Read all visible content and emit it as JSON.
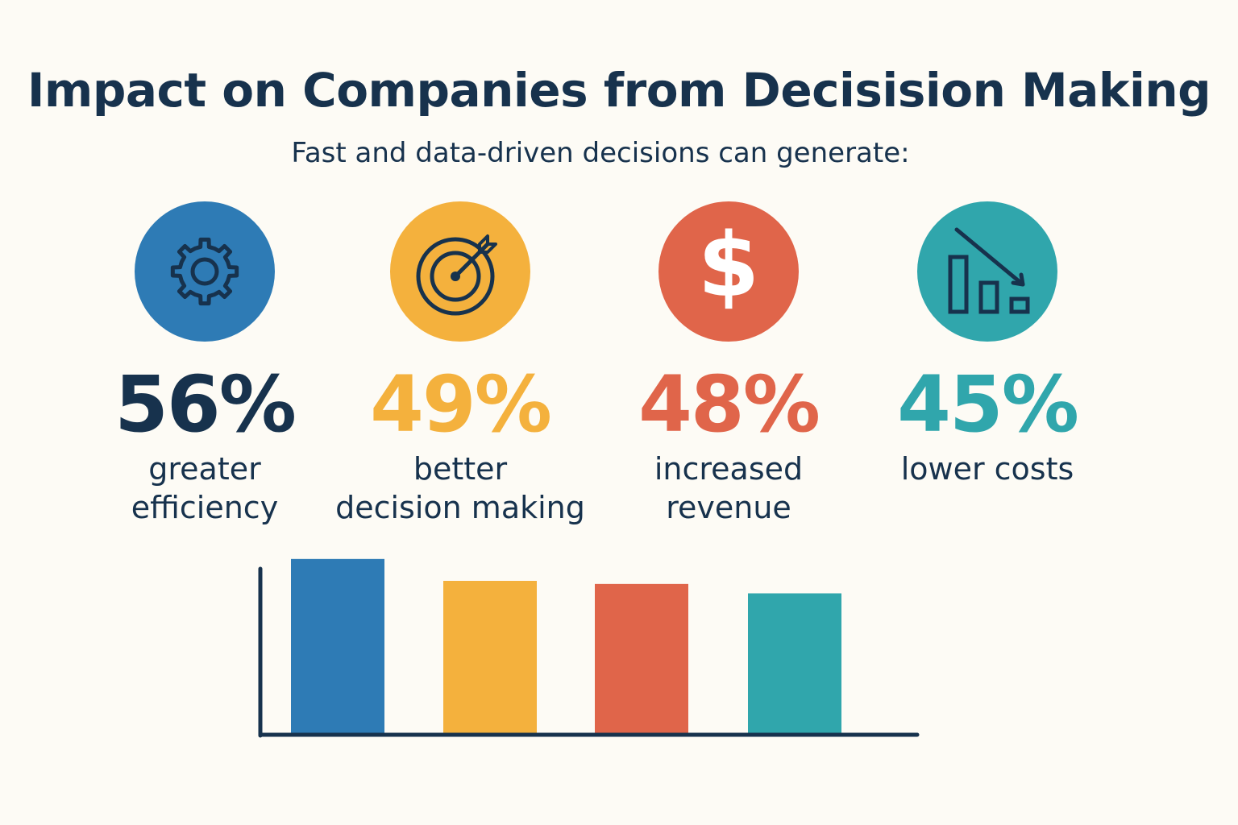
{
  "title": "Impact on Companies from Decisision Making",
  "subtitle": "Fast and data-driven decisions can generate:",
  "colors": {
    "background": "#fdfbf5",
    "text": "#17324d",
    "blue": "#2e7bb5",
    "yellow": "#f4b13d",
    "red": "#e0654a",
    "teal": "#30a6ac"
  },
  "stats": [
    {
      "icon": "gear-icon",
      "value": "56%",
      "label": "greater\nefficiency",
      "color": "#2e7bb5",
      "value_color": "#17324d"
    },
    {
      "icon": "target-icon",
      "value": "49%",
      "label": "better\ndecision making",
      "color": "#f4b13d",
      "value_color": "#f4b13d"
    },
    {
      "icon": "dollar-icon",
      "value": "48%",
      "label": "increased\nrevenue",
      "color": "#e0654a",
      "value_color": "#e0654a"
    },
    {
      "icon": "cost-down-icon",
      "value": "45%",
      "label": "lower costs",
      "color": "#30a6ac",
      "value_color": "#30a6ac"
    }
  ],
  "chart_data": {
    "type": "bar",
    "title": "",
    "xlabel": "",
    "ylabel": "",
    "categories": [
      "greater efficiency",
      "better decision making",
      "increased revenue",
      "lower costs"
    ],
    "values": [
      56,
      49,
      48,
      45
    ],
    "colors": [
      "#2e7bb5",
      "#f4b13d",
      "#e0654a",
      "#30a6ac"
    ],
    "ylim": [
      0,
      57.5
    ],
    "grid": false,
    "legend": "none",
    "tick_labels": false
  }
}
